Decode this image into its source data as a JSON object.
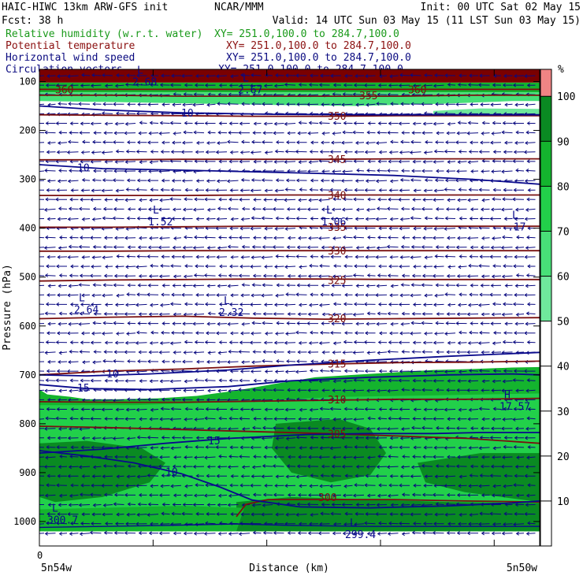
{
  "header": {
    "left1": "HAIC-HIWC 13km ARW-GFS init",
    "center1": "NCAR/MMM",
    "right1": "Init: 00 UTC Sat 02 May 15",
    "left2": "Fcst:    38 h",
    "right2": "Valid: 14 UTC Sun 03 May 15 (11 LST Sun 03 May 15)",
    "fields": [
      {
        "name": "Relative humidity (w.r.t. water)",
        "xy": "XY= 251.0,100.0 to 284.7,100.0",
        "color": "#1a9a1a"
      },
      {
        "name": "Potential temperature",
        "xy": "XY= 251.0,100.0 to 284.7,100.0",
        "color": "#8b1010"
      },
      {
        "name": "Horizontal wind speed",
        "xy": "XY= 251.0,100.0 to 284.7,100.0",
        "color": "#0a0a80"
      },
      {
        "name": "Circulation vectors",
        "xy": "XY= 251.0,100.0 to 284.7,100.0",
        "color": "#0a0a80"
      }
    ]
  },
  "chart_data": {
    "type": "heatmap",
    "xlabel": "Distance (km)",
    "ylabel": "Pressure (hPa)",
    "x_start_label": "0",
    "x_left_label": "5n54w",
    "x_right_label": "5n50w",
    "y_ticks": [
      100,
      200,
      300,
      400,
      500,
      600,
      700,
      800,
      900,
      1000
    ],
    "ylim": [
      1050,
      75
    ],
    "colorbar": {
      "unit": "%",
      "ticks": [
        10,
        20,
        30,
        40,
        50,
        60,
        70,
        80,
        90,
        100
      ],
      "bands": [
        {
          "from": 0,
          "to": 50,
          "color": "#ffffff"
        },
        {
          "from": 50,
          "to": 60,
          "color": "#6fe89c"
        },
        {
          "from": 60,
          "to": 70,
          "color": "#48e078"
        },
        {
          "from": 70,
          "to": 80,
          "color": "#22d04a"
        },
        {
          "from": 80,
          "to": 90,
          "color": "#14b42e"
        },
        {
          "from": 90,
          "to": 100,
          "color": "#0a8a22"
        },
        {
          "from": 100,
          "to": 106,
          "color": "#f08484"
        }
      ]
    },
    "rh_regions": [
      {
        "color": "#14b42e",
        "path": [
          [
            0,
            730
          ],
          [
            10,
            740
          ],
          [
            40,
            745
          ],
          [
            60,
            750
          ],
          [
            100,
            750
          ],
          [
            150,
            748
          ],
          [
            200,
            743
          ],
          [
            250,
            732
          ],
          [
            300,
            718
          ],
          [
            350,
            705
          ],
          [
            400,
            700
          ],
          [
            450,
            695
          ],
          [
            500,
            690
          ],
          [
            550,
            688
          ],
          [
            600,
            685
          ],
          [
            635,
            684
          ],
          [
            635,
            1020
          ],
          [
            0,
            1020
          ]
        ]
      },
      {
        "color": "#14b42e",
        "path": [
          [
            0,
            102
          ],
          [
            635,
            102
          ],
          [
            635,
            122
          ],
          [
            0,
            122
          ]
        ]
      },
      {
        "color": "#48e078",
        "path": [
          [
            0,
            122
          ],
          [
            635,
            122
          ],
          [
            635,
            140
          ],
          [
            600,
            140
          ],
          [
            520,
            145
          ],
          [
            400,
            150
          ],
          [
            300,
            148
          ],
          [
            100,
            142
          ],
          [
            0,
            140
          ]
        ]
      },
      {
        "color": "#6fe89c",
        "path": [
          [
            500,
            160
          ],
          [
            560,
            155
          ],
          [
            635,
            156
          ],
          [
            635,
            170
          ],
          [
            560,
            170
          ],
          [
            500,
            168
          ]
        ]
      },
      {
        "color": "#22d04a",
        "path": [
          [
            0,
            762
          ],
          [
            120,
            762
          ],
          [
            250,
            755
          ],
          [
            380,
            745
          ],
          [
            500,
            742
          ],
          [
            635,
            738
          ],
          [
            635,
            1020
          ],
          [
            0,
            1020
          ]
        ]
      },
      {
        "color": "#0a8a22",
        "path": [
          [
            0,
            840
          ],
          [
            60,
            835
          ],
          [
            130,
            850
          ],
          [
            160,
            880
          ],
          [
            140,
            920
          ],
          [
            80,
            950
          ],
          [
            20,
            960
          ],
          [
            0,
            950
          ]
        ]
      },
      {
        "color": "#0a8a22",
        "path": [
          [
            300,
            800
          ],
          [
            380,
            790
          ],
          [
            420,
            810
          ],
          [
            440,
            860
          ],
          [
            420,
            905
          ],
          [
            370,
            920
          ],
          [
            320,
            900
          ],
          [
            295,
            850
          ]
        ]
      },
      {
        "color": "#0a8a22",
        "path": [
          [
            480,
            880
          ],
          [
            560,
            860
          ],
          [
            635,
            860
          ],
          [
            635,
            960
          ],
          [
            540,
            940
          ],
          [
            490,
            920
          ]
        ]
      },
      {
        "color": "#0a8a22",
        "path": [
          [
            250,
            960
          ],
          [
            320,
            950
          ],
          [
            420,
            955
          ],
          [
            520,
            960
          ],
          [
            635,
            962
          ],
          [
            635,
            1020
          ],
          [
            250,
            1020
          ]
        ]
      },
      {
        "color": "#14b42e",
        "path": [
          [
            0,
            975
          ],
          [
            180,
            968
          ],
          [
            260,
            972
          ],
          [
            250,
            1020
          ],
          [
            0,
            1020
          ]
        ]
      }
    ],
    "cap": {
      "from": 75,
      "to": 102,
      "color": "#7a0000"
    },
    "theta_contours": [
      {
        "label": "360",
        "label_x": 20,
        "label_p": 116,
        "y": [
          116,
          116,
          116,
          116,
          116,
          116,
          116,
          116
        ]
      },
      {
        "label": "360",
        "label_x": 468,
        "label_p": 116,
        "y": [
          116,
          116,
          116,
          116,
          116,
          116,
          116,
          116
        ]
      },
      {
        "label": "355",
        "label_x": 406,
        "label_p": 128,
        "y": [
          128,
          128,
          130,
          130,
          130,
          130,
          128,
          128
        ]
      },
      {
        "label": "350",
        "label_x": 366,
        "label_p": 170,
        "y": [
          168,
          169,
          170,
          171,
          171,
          170,
          170,
          170
        ]
      },
      {
        "label": "345",
        "label_x": 366,
        "label_p": 259,
        "y": [
          260,
          260,
          259,
          259,
          259,
          258,
          258,
          258
        ]
      },
      {
        "label": "340",
        "label_x": 366,
        "label_p": 332,
        "y": [
          333,
          333,
          333,
          332,
          332,
          332,
          332,
          332
        ]
      },
      {
        "label": "335",
        "label_x": 366,
        "label_p": 397,
        "y": [
          398,
          398,
          397,
          396,
          396,
          396,
          396,
          396
        ]
      },
      {
        "label": "330",
        "label_x": 366,
        "label_p": 446,
        "y": [
          447,
          447,
          446,
          446,
          446,
          446,
          446,
          446
        ]
      },
      {
        "label": "325",
        "label_x": 366,
        "label_p": 506,
        "y": [
          508,
          506,
          505,
          504,
          504,
          505,
          505,
          505
        ]
      },
      {
        "label": "320",
        "label_x": 366,
        "label_p": 584,
        "y": [
          585,
          582,
          580,
          584,
          586,
          585,
          584,
          583
        ]
      },
      {
        "label": "315",
        "label_x": 366,
        "label_p": 677,
        "y": [
          700,
          692,
          688,
          682,
          678,
          675,
          674,
          672
        ]
      },
      {
        "label": "310",
        "label_x": 366,
        "label_p": 750,
        "y": [
          755,
          756,
          756,
          754,
          752,
          750,
          750,
          748
        ]
      },
      {
        "label": "305",
        "label_x": 366,
        "label_p": 820,
        "y": [
          805,
          808,
          812,
          816,
          820,
          825,
          830,
          840
        ]
      }
    ],
    "theta_extra_label": {
      "label": "300",
      "label_x": 354,
      "label_p": 950
    },
    "theta_sfc_contour": {
      "x": [
        250,
        262,
        290,
        380,
        450,
        540,
        635
      ],
      "y": [
        990,
        965,
        955,
        955,
        955,
        958,
        960
      ]
    },
    "wind_contours": [
      {
        "label": "10",
        "points": [
          [
            0,
            150
          ],
          [
            80,
            158
          ],
          [
            180,
            164
          ],
          [
            300,
            167
          ],
          [
            420,
            168
          ],
          [
            520,
            168
          ],
          [
            635,
            168
          ]
        ],
        "label_x": 180,
        "label_p": 164
      },
      {
        "label": "10",
        "points": [
          [
            0,
            270
          ],
          [
            80,
            278
          ],
          [
            200,
            282
          ],
          [
            330,
            287
          ],
          [
            450,
            292
          ],
          [
            550,
            300
          ],
          [
            635,
            310
          ]
        ],
        "label_x": 48,
        "label_p": 276
      },
      {
        "label": "10",
        "points": [
          [
            0,
            700
          ],
          [
            60,
            702
          ],
          [
            140,
            698
          ],
          [
            240,
            690
          ],
          [
            320,
            680
          ],
          [
            420,
            670
          ],
          [
            520,
            662
          ],
          [
            635,
            654
          ]
        ],
        "label_x": 85,
        "label_p": 697
      },
      {
        "label": "15",
        "points": [
          [
            0,
            720
          ],
          [
            60,
            728
          ],
          [
            140,
            730
          ],
          [
            240,
            724
          ],
          [
            320,
            712
          ],
          [
            420,
            705
          ],
          [
            520,
            700
          ],
          [
            600,
            698
          ],
          [
            635,
            700
          ]
        ],
        "label_x": 48,
        "label_p": 726
      },
      {
        "label": "15",
        "points": [
          [
            0,
            860
          ],
          [
            80,
            852
          ],
          [
            160,
            840
          ],
          [
            240,
            830
          ],
          [
            340,
            822
          ],
          [
            420,
            820
          ],
          [
            500,
            820
          ],
          [
            560,
            818
          ],
          [
            635,
            818
          ]
        ],
        "label_x": 214,
        "label_p": 834
      },
      {
        "label": "10",
        "points": [
          [
            0,
            855
          ],
          [
            60,
            866
          ],
          [
            120,
            880
          ],
          [
            180,
            902
          ],
          [
            230,
            930
          ],
          [
            270,
            956
          ],
          [
            330,
            970
          ],
          [
            420,
            972
          ],
          [
            520,
            968
          ],
          [
            600,
            962
          ],
          [
            635,
            958
          ]
        ],
        "label_x": 160,
        "label_p": 898
      }
    ],
    "markers": [
      {
        "letter": "L",
        "value": "2.68",
        "x": 118,
        "p": 84
      },
      {
        "letter": "L",
        "value": "2.67",
        "x": 252,
        "p": 100
      },
      {
        "letter": "L",
        "value": "1.52",
        "x": 138,
        "p": 370
      },
      {
        "letter": "L",
        "value": "1.06",
        "x": 358,
        "p": 370
      },
      {
        "letter": "L",
        "value": ".17",
        "x": 594,
        "p": 380
      },
      {
        "letter": "L",
        "value": "2.64",
        "x": 44,
        "p": 550
      },
      {
        "letter": "L",
        "value": "2.32",
        "x": 228,
        "p": 555
      },
      {
        "letter": "H",
        "value": "17.57",
        "x": 584,
        "p": 748
      },
      {
        "letter": "L",
        "value": "300.7",
        "x": 10,
        "p": 980
      },
      {
        "letter": "L",
        "value": "299.4",
        "x": 388,
        "p": 1010
      }
    ],
    "surface": {
      "x": [
        0,
        80,
        160,
        250,
        320,
        420,
        520,
        635
      ],
      "p": [
        1012,
        1010,
        1008,
        1005,
        1008,
        1010,
        1010,
        1010
      ]
    },
    "vectors": {
      "color": "#0a0a80"
    }
  }
}
